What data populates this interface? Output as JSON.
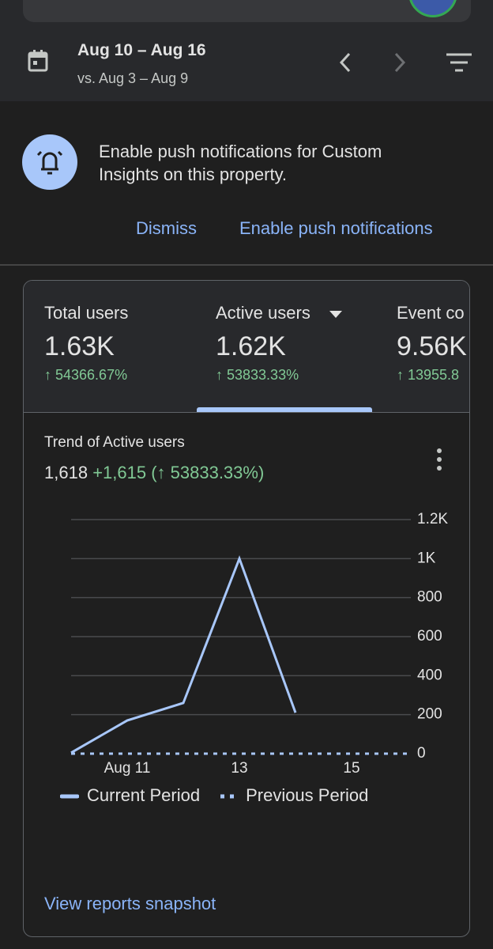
{
  "header": {
    "date_range": "Aug 10 – Aug 16",
    "comparison": "vs. Aug 3 – Aug 9"
  },
  "banner": {
    "message": "Enable push notifications for Custom Insights on this property.",
    "dismiss": "Dismiss",
    "enable": "Enable push notifications"
  },
  "metrics": [
    {
      "label": "Total users",
      "value": "1.63K",
      "change": "↑ 54366.67%"
    },
    {
      "label": "Active users",
      "value": "1.62K",
      "change": "↑ 53833.33%"
    },
    {
      "label": "Event co",
      "value": "9.56K",
      "change": "↑ 13955.8"
    }
  ],
  "trend": {
    "title": "Trend of Active users",
    "total": "1,618",
    "delta": "+1,615 (↑ 53833.33%)",
    "link": "View reports snapshot"
  },
  "chart_data": {
    "type": "line",
    "categories": [
      null,
      "Aug 11",
      null,
      "13",
      null,
      "15",
      null
    ],
    "series": [
      {
        "name": "Current Period",
        "color": "#a8c7fa",
        "values": [
          5,
          170,
          260,
          1000,
          210,
          null,
          null
        ]
      },
      {
        "name": "Previous Period",
        "color": "#a8c7fa",
        "dashed": true,
        "values": [
          0,
          0,
          0,
          0,
          0,
          0,
          0
        ]
      }
    ],
    "ylim": [
      0,
      1200
    ],
    "yticks": [
      0,
      200,
      400,
      600,
      800,
      {
        "value": 1000,
        "label": "1K"
      },
      {
        "value": 1200,
        "label": "1.2K"
      }
    ],
    "grid": true
  }
}
